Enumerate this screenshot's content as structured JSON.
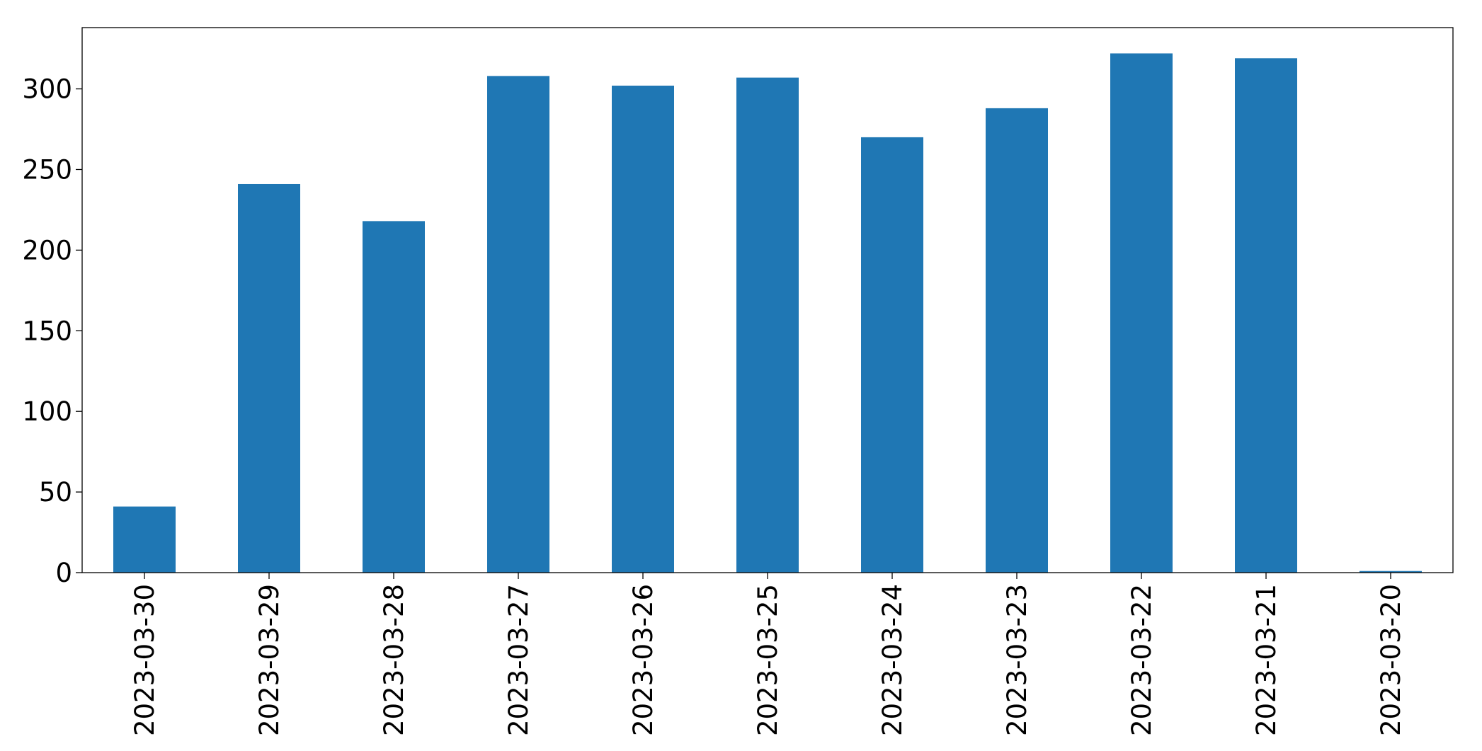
{
  "chart_data": {
    "type": "bar",
    "categories": [
      "2023-03-30",
      "2023-03-29",
      "2023-03-28",
      "2023-03-27",
      "2023-03-26",
      "2023-03-25",
      "2023-03-24",
      "2023-03-23",
      "2023-03-22",
      "2023-03-21",
      "2023-03-20"
    ],
    "values": [
      41,
      241,
      218,
      308,
      302,
      307,
      270,
      288,
      322,
      319,
      1
    ],
    "color": "#1f77b4",
    "ylim": [
      0,
      338
    ],
    "yticks": [
      0,
      50,
      100,
      150,
      200,
      250,
      300
    ],
    "grid": false
  }
}
